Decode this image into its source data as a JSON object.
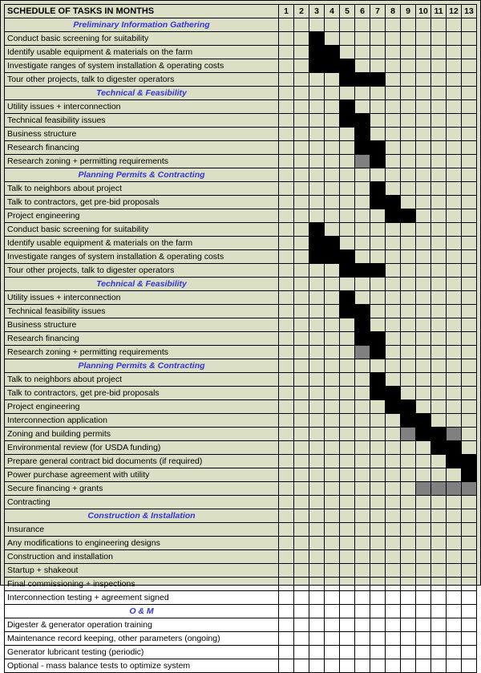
{
  "title": "SCHEDULE OF TASKS IN MONTHS",
  "months": [
    "1",
    "2",
    "3",
    "4",
    "5",
    "6",
    "7",
    "8",
    "9",
    "10",
    "11",
    "12",
    "13"
  ],
  "colors": {
    "background": "#dbdfc6",
    "section_header_text": "#3333dd",
    "bar_fill": "#000000",
    "bar_partial": "#808080",
    "border": "#000000"
  },
  "typography": {
    "font_family": "Arial, sans-serif",
    "cell_fontsize": 10.5,
    "header_fontsize": 11
  },
  "rows": [
    {
      "type": "section",
      "label": "Preliminary Information Gathering"
    },
    {
      "type": "task",
      "label": "Conduct basic screening for suitability",
      "bars": [
        "",
        "",
        "B",
        "",
        "",
        "",
        "",
        "",
        "",
        "",
        "",
        "",
        ""
      ]
    },
    {
      "type": "task",
      "label": "Identify usable equipment & materials on the farm",
      "bars": [
        "",
        "",
        "B",
        "B",
        "",
        "",
        "",
        "",
        "",
        "",
        "",
        "",
        ""
      ]
    },
    {
      "type": "task",
      "label": "Investigate ranges of system installation & operating costs",
      "bars": [
        "",
        "",
        "B",
        "B",
        "B",
        "",
        "",
        "",
        "",
        "",
        "",
        "",
        ""
      ]
    },
    {
      "type": "task",
      "label": "Tour other projects, talk to digester operators",
      "bars": [
        "",
        "",
        "",
        "",
        "B",
        "B",
        "B",
        "",
        "",
        "",
        "",
        "",
        ""
      ]
    },
    {
      "type": "section",
      "label": "Technical & Feasibility"
    },
    {
      "type": "task",
      "label": "Utility issues + interconnection",
      "bars": [
        "",
        "",
        "",
        "",
        "B",
        "",
        "",
        "",
        "",
        "",
        "",
        "",
        ""
      ]
    },
    {
      "type": "task",
      "label": "Technical feasibility issues",
      "bars": [
        "",
        "",
        "",
        "",
        "B",
        "B",
        "",
        "",
        "",
        "",
        "",
        "",
        ""
      ]
    },
    {
      "type": "task",
      "label": "Business  structure",
      "bars": [
        "",
        "",
        "",
        "",
        "",
        "B",
        "",
        "",
        "",
        "",
        "",
        "",
        ""
      ]
    },
    {
      "type": "task",
      "label": "Research financing",
      "bars": [
        "",
        "",
        "",
        "",
        "",
        "B",
        "B",
        "",
        "",
        "",
        "",
        "",
        ""
      ]
    },
    {
      "type": "task",
      "label": "Research zoning + permitting requirements",
      "bars": [
        "",
        "",
        "",
        "",
        "",
        "G",
        "B",
        "",
        "",
        "",
        "",
        "",
        ""
      ]
    },
    {
      "type": "section",
      "label": "Planning Permits & Contracting"
    },
    {
      "type": "task",
      "label": "Talk to neighbors about project",
      "bars": [
        "",
        "",
        "",
        "",
        "",
        "",
        "B",
        "",
        "",
        "",
        "",
        "",
        ""
      ]
    },
    {
      "type": "task",
      "label": "Talk to contractors, get pre-bid proposals",
      "bars": [
        "",
        "",
        "",
        "",
        "",
        "",
        "B",
        "B",
        "",
        "",
        "",
        "",
        ""
      ]
    },
    {
      "type": "task",
      "label": "Project engineering",
      "bars": [
        "",
        "",
        "",
        "",
        "",
        "",
        "",
        "B",
        "B",
        "",
        "",
        "",
        ""
      ]
    },
    {
      "type": "task",
      "label": "Conduct basic screening for suitability",
      "bars": [
        "",
        "",
        "B",
        "",
        "",
        "",
        "",
        "",
        "",
        "",
        "",
        "",
        ""
      ]
    },
    {
      "type": "task",
      "label": "Identify usable equipment & materials on the farm",
      "bars": [
        "",
        "",
        "B",
        "B",
        "",
        "",
        "",
        "",
        "",
        "",
        "",
        "",
        ""
      ]
    },
    {
      "type": "task",
      "label": "Investigate ranges of system installation & operating costs",
      "bars": [
        "",
        "",
        "B",
        "B",
        "B",
        "",
        "",
        "",
        "",
        "",
        "",
        "",
        ""
      ]
    },
    {
      "type": "task",
      "label": "Tour other projects, talk to digester operators",
      "bars": [
        "",
        "",
        "",
        "",
        "B",
        "B",
        "B",
        "",
        "",
        "",
        "",
        "",
        ""
      ]
    },
    {
      "type": "section",
      "label": "Technical & Feasibility"
    },
    {
      "type": "task",
      "label": "Utility issues + interconnection",
      "bars": [
        "",
        "",
        "",
        "",
        "B",
        "",
        "",
        "",
        "",
        "",
        "",
        "",
        ""
      ]
    },
    {
      "type": "task",
      "label": "Technical feasibility issues",
      "bars": [
        "",
        "",
        "",
        "",
        "B",
        "B",
        "",
        "",
        "",
        "",
        "",
        "",
        ""
      ]
    },
    {
      "type": "task",
      "label": "Business  structure",
      "bars": [
        "",
        "",
        "",
        "",
        "",
        "B",
        "",
        "",
        "",
        "",
        "",
        "",
        ""
      ]
    },
    {
      "type": "task",
      "label": "Research financing",
      "bars": [
        "",
        "",
        "",
        "",
        "",
        "B",
        "B",
        "",
        "",
        "",
        "",
        "",
        ""
      ]
    },
    {
      "type": "task",
      "label": "Research zoning + permitting requirements",
      "bars": [
        "",
        "",
        "",
        "",
        "",
        "G",
        "B",
        "",
        "",
        "",
        "",
        "",
        ""
      ]
    },
    {
      "type": "section",
      "label": "Planning Permits & Contracting"
    },
    {
      "type": "task",
      "label": "Talk to neighbors about project",
      "bars": [
        "",
        "",
        "",
        "",
        "",
        "",
        "B",
        "",
        "",
        "",
        "",
        "",
        ""
      ]
    },
    {
      "type": "task",
      "label": "Talk to contractors, get pre-bid proposals",
      "bars": [
        "",
        "",
        "",
        "",
        "",
        "",
        "B",
        "B",
        "",
        "",
        "",
        "",
        ""
      ]
    },
    {
      "type": "task",
      "label": "Project engineering",
      "bars": [
        "",
        "",
        "",
        "",
        "",
        "",
        "",
        "B",
        "B",
        "",
        "",
        "",
        ""
      ]
    },
    {
      "type": "task",
      "label": "Interconnection application",
      "bars": [
        "",
        "",
        "",
        "",
        "",
        "",
        "",
        "",
        "B",
        "B",
        "",
        "",
        ""
      ]
    },
    {
      "type": "task",
      "label": "Zoning and building permits",
      "bars": [
        "",
        "",
        "",
        "",
        "",
        "",
        "",
        "",
        "G",
        "B",
        "B",
        "G",
        ""
      ]
    },
    {
      "type": "task",
      "label": "Environmental review (for USDA funding)",
      "bars": [
        "",
        "",
        "",
        "",
        "",
        "",
        "",
        "",
        "",
        "",
        "B",
        "B",
        ""
      ]
    },
    {
      "type": "task",
      "label": "Prepare general contract bid documents (if required)",
      "bars": [
        "",
        "",
        "",
        "",
        "",
        "",
        "",
        "",
        "",
        "",
        "",
        "B",
        "B"
      ]
    },
    {
      "type": "task",
      "label": "Power purchase agreement with utility",
      "bars": [
        "",
        "",
        "",
        "",
        "",
        "",
        "",
        "",
        "",
        "",
        "",
        "",
        "B"
      ]
    },
    {
      "type": "task",
      "label": "Secure financing + grants",
      "bars": [
        "",
        "",
        "",
        "",
        "",
        "",
        "",
        "",
        "",
        "G",
        "G",
        "G",
        "G"
      ]
    },
    {
      "type": "task",
      "label": "Contracting",
      "bars": [
        "",
        "",
        "",
        "",
        "",
        "",
        "",
        "",
        "",
        "",
        "",
        "",
        ""
      ]
    },
    {
      "type": "section",
      "label": "Construction & Installation"
    },
    {
      "type": "task",
      "label": "Insurance",
      "bars": [
        "",
        "",
        "",
        "",
        "",
        "",
        "",
        "",
        "",
        "",
        "",
        "",
        ""
      ]
    },
    {
      "type": "task",
      "label": "Any modifications to engineering designs",
      "bars": [
        "",
        "",
        "",
        "",
        "",
        "",
        "",
        "",
        "",
        "",
        "",
        "",
        ""
      ]
    },
    {
      "type": "task",
      "label": "Construction and installation",
      "bars": [
        "",
        "",
        "",
        "",
        "",
        "",
        "",
        "",
        "",
        "",
        "",
        "",
        ""
      ]
    },
    {
      "type": "task",
      "label": "Startup + shakeout",
      "bars": [
        "",
        "",
        "",
        "",
        "",
        "",
        "",
        "",
        "",
        "",
        "",
        "",
        ""
      ]
    },
    {
      "type": "task",
      "label": "Final commissioning + inspections",
      "bars": [
        "",
        "",
        "",
        "",
        "",
        "",
        "",
        "",
        "",
        "",
        "",
        "",
        ""
      ]
    },
    {
      "type": "task",
      "label": "Interconnection testing + agreement signed",
      "bars": [
        "",
        "",
        "",
        "",
        "",
        "",
        "",
        "",
        "",
        "",
        "",
        "",
        ""
      ]
    },
    {
      "type": "section",
      "label": "O & M"
    },
    {
      "type": "task",
      "label": "Digester & generator operation training",
      "bars": [
        "",
        "",
        "",
        "",
        "",
        "",
        "",
        "",
        "",
        "",
        "",
        "",
        ""
      ]
    },
    {
      "type": "task",
      "label": "Maintenance record keeping, other parameters (ongoing)",
      "bars": [
        "",
        "",
        "",
        "",
        "",
        "",
        "",
        "",
        "",
        "",
        "",
        "",
        ""
      ]
    },
    {
      "type": "task",
      "label": "Generator lubricant testing (periodic)",
      "bars": [
        "",
        "",
        "",
        "",
        "",
        "",
        "",
        "",
        "",
        "",
        "",
        "",
        ""
      ]
    },
    {
      "type": "task",
      "label": "Optional - mass balance tests to optimize system",
      "bars": [
        "",
        "",
        "",
        "",
        "",
        "",
        "",
        "",
        "",
        "",
        "",
        "",
        ""
      ]
    }
  ]
}
